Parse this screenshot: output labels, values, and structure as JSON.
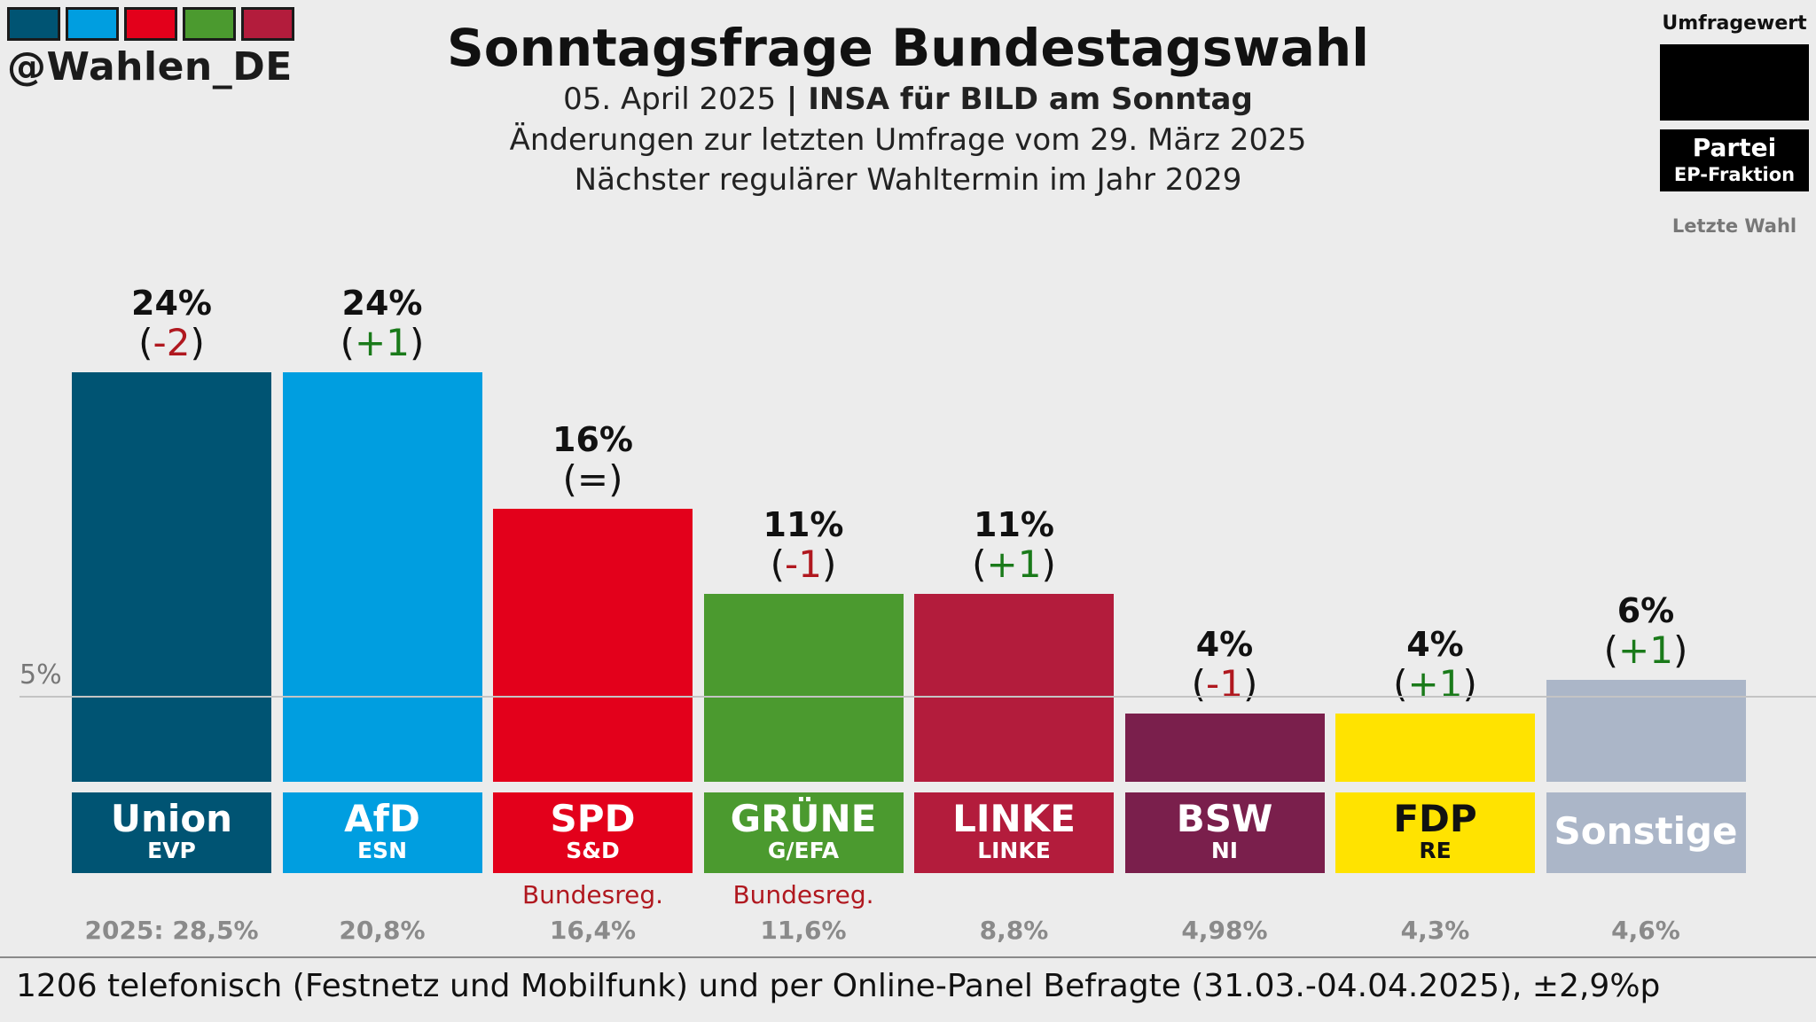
{
  "brand": {
    "handle": "@Wahlen_DE",
    "stripe_colors": [
      "#005473",
      "#009ee0",
      "#e3001b",
      "#4b9a2f",
      "#b31c3c"
    ]
  },
  "header": {
    "title": "Sonntagsfrage Bundestagswahl",
    "date": "05. April 2025",
    "separator": " | ",
    "institute": "INSA für BILD am Sonntag",
    "changes_note": "Änderungen zur letzten Umfrage vom 29. März 2025",
    "next_election": "Nächster regulärer Wahltermin im Jahr 2029"
  },
  "legend": {
    "poll_value": "Umfragewert",
    "party": "Partei",
    "group": "EP-Fraktion",
    "last_election": "Letzte Wahl"
  },
  "chart_data": {
    "type": "bar",
    "title": "Sonntagsfrage Bundestagswahl",
    "unit": "%",
    "threshold": 5,
    "threshold_label": "5%",
    "ylim": [
      0,
      24
    ],
    "parties": [
      {
        "name": "Union",
        "group": "EVP",
        "value": 24,
        "value_label": "24%",
        "change": "-2",
        "change_dir": "down",
        "color": "#005473",
        "text_color": "#ffffff",
        "government": "",
        "last_election": "2025: 28,5%"
      },
      {
        "name": "AfD",
        "group": "ESN",
        "value": 24,
        "value_label": "24%",
        "change": "+1",
        "change_dir": "up",
        "color": "#009ee0",
        "text_color": "#ffffff",
        "government": "",
        "last_election": "20,8%"
      },
      {
        "name": "SPD",
        "group": "S&D",
        "value": 16,
        "value_label": "16%",
        "change": "=",
        "change_dir": "same",
        "color": "#e3001b",
        "text_color": "#ffffff",
        "government": "Bundesreg.",
        "last_election": "16,4%"
      },
      {
        "name": "GRÜNE",
        "group": "G/EFA",
        "value": 11,
        "value_label": "11%",
        "change": "-1",
        "change_dir": "down",
        "color": "#4b9a2f",
        "text_color": "#ffffff",
        "government": "Bundesreg.",
        "last_election": "11,6%"
      },
      {
        "name": "LINKE",
        "group": "LINKE",
        "value": 11,
        "value_label": "11%",
        "change": "+1",
        "change_dir": "up",
        "color": "#b31c3c",
        "text_color": "#ffffff",
        "government": "",
        "last_election": "8,8%"
      },
      {
        "name": "BSW",
        "group": "NI",
        "value": 4,
        "value_label": "4%",
        "change": "-1",
        "change_dir": "down",
        "color": "#7a1f4c",
        "text_color": "#ffffff",
        "government": "",
        "last_election": "4,98%"
      },
      {
        "name": "FDP",
        "group": "RE",
        "value": 4,
        "value_label": "4%",
        "change": "+1",
        "change_dir": "up",
        "color": "#ffe300",
        "text_color": "#111111",
        "government": "",
        "last_election": "4,3%"
      },
      {
        "name": "Sonstige",
        "group": "",
        "value": 6,
        "value_label": "6%",
        "change": "+1",
        "change_dir": "up",
        "color": "#abb6c8",
        "text_color": "#ffffff",
        "government": "",
        "last_election": "4,6%"
      }
    ]
  },
  "colors": {
    "change_up": "#1a7a1a",
    "change_down": "#b0181f",
    "change_same": "#111111"
  },
  "footer": {
    "methodology": "1206 telefonisch (Festnetz und Mobilfunk) und per Online-Panel Befragte (31.03.-04.04.2025), ±2,9%p"
  }
}
